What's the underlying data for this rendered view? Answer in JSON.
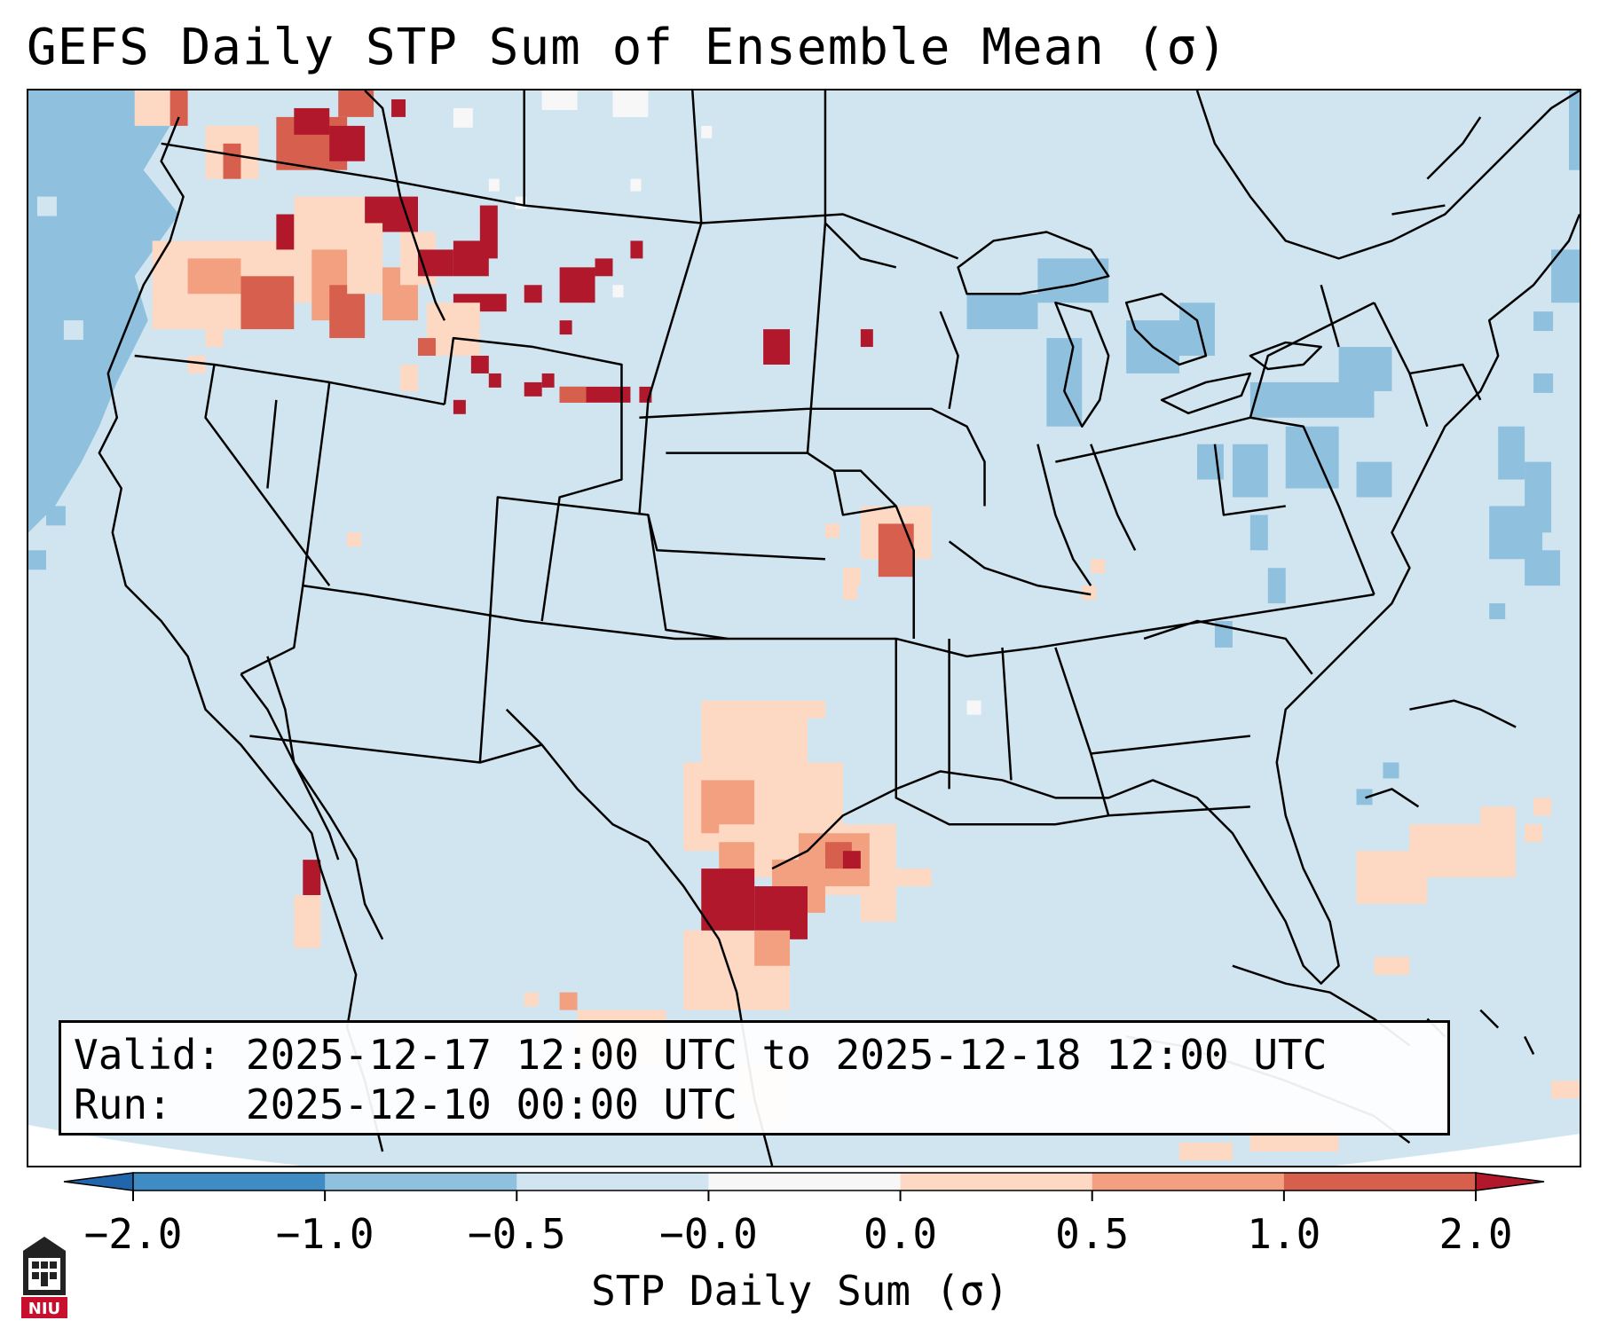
{
  "title": "GEFS Daily STP Sum of Ensemble Mean (σ)",
  "info": {
    "valid_label": "Valid:",
    "valid_value": "2025-12-17 12:00 UTC to 2025-12-18 12:00 UTC",
    "run_label": "Run:",
    "run_value": "2025-12-10 00:00 UTC"
  },
  "colorbar": {
    "label": "STP Daily Sum (σ)",
    "ticks": [
      "−2.0",
      "−1.0",
      "−0.5",
      "−0.0",
      "0.0",
      "0.5",
      "1.0",
      "2.0"
    ],
    "bin_colors": [
      "#3f8cc4",
      "#8fc0de",
      "#d1e5f0",
      "#f7f7f7",
      "#fdd9c4",
      "#f2a07f",
      "#d6604d",
      "#b2182b"
    ],
    "under_color": "#2166ac",
    "over_color": "#b2182b"
  },
  "map": {
    "background_color": "#d1e5f0",
    "line_color": "#000000"
  },
  "logo": {
    "text": "NIU",
    "color": "#c8102e"
  }
}
